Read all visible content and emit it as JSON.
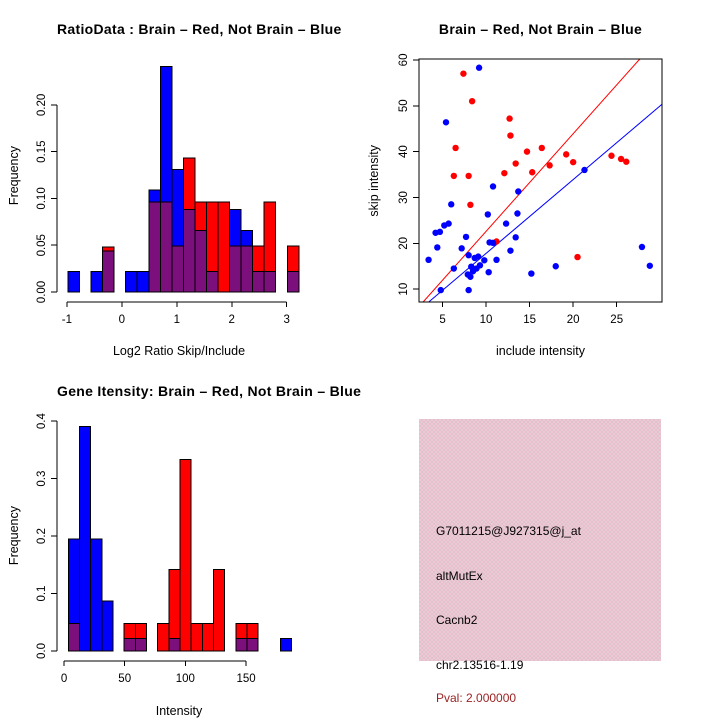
{
  "colors": {
    "red": "#FF0000",
    "blue": "#0000FF",
    "overlap": "#7B0F7B",
    "axis": "#000000",
    "pink_bg": "#F2C6D2",
    "pval_text": "#9B2222",
    "background": "#FFFFFF"
  },
  "chart_data": [
    {
      "id": "ratio-histogram",
      "type": "bar",
      "subtype": "overlaid-histogram",
      "title": "RatioData : Brain – Red, Not Brain – Blue",
      "xlabel": "Log2 Ratio Skip/Include",
      "ylabel": "Frequency",
      "xlim": [
        -1.18,
        3.26
      ],
      "ylim": [
        0,
        0.248
      ],
      "xticks": [
        -1,
        0,
        1,
        2,
        3
      ],
      "xtick_labels": [
        "-1",
        "0",
        "1",
        "2",
        "3"
      ],
      "yticks": [
        0,
        0.05,
        0.1,
        0.15,
        0.2
      ],
      "ytick_labels": [
        "0.00",
        "0.05",
        "0.10",
        "0.15",
        "0.20"
      ],
      "bin_width": 0.21,
      "legend": {
        "brain": "red",
        "not_brain": "blue",
        "overlap": "purple"
      },
      "bars": [
        {
          "x": -0.98,
          "blue": 0.022,
          "red": 0
        },
        {
          "x": -0.56,
          "blue": 0.022,
          "red": 0
        },
        {
          "x": -0.35,
          "blue": 0.044,
          "red": 0.048
        },
        {
          "x": 0.07,
          "blue": 0.022,
          "red": 0
        },
        {
          "x": 0.28,
          "blue": 0.022,
          "red": 0
        },
        {
          "x": 0.49,
          "blue": 0.109,
          "red": 0.096
        },
        {
          "x": 0.7,
          "blue": 0.241,
          "red": 0.096
        },
        {
          "x": 0.91,
          "blue": 0.131,
          "red": 0.049
        },
        {
          "x": 1.12,
          "blue": 0.088,
          "red": 0.143
        },
        {
          "x": 1.33,
          "blue": 0.066,
          "red": 0.096
        },
        {
          "x": 1.54,
          "blue": 0.022,
          "red": 0.096
        },
        {
          "x": 1.75,
          "blue": 0,
          "red": 0.096
        },
        {
          "x": 1.96,
          "blue": 0.088,
          "red": 0.049
        },
        {
          "x": 2.17,
          "blue": 0.066,
          "red": 0.049
        },
        {
          "x": 2.38,
          "blue": 0.022,
          "red": 0.049
        },
        {
          "x": 2.59,
          "blue": 0.022,
          "red": 0.096
        },
        {
          "x": 3.01,
          "blue": 0.022,
          "red": 0.049
        }
      ]
    },
    {
      "id": "intensity-scatter",
      "type": "scatter",
      "title": "Brain – Red, Not Brain – Blue",
      "xlabel": "include intensity",
      "ylabel": "skip intensity",
      "xlim": [
        2.3,
        30.2
      ],
      "ylim": [
        7.2,
        60.2
      ],
      "xticks": [
        5,
        10,
        15,
        20,
        25
      ],
      "xtick_labels": [
        "5",
        "10",
        "15",
        "20",
        "25"
      ],
      "yticks": [
        10,
        20,
        30,
        40,
        50,
        60
      ],
      "ytick_labels": [
        "10",
        "20",
        "30",
        "40",
        "50",
        "60"
      ],
      "red_points": [
        [
          7.4,
          57.0
        ],
        [
          8.4,
          51.0
        ],
        [
          12.7,
          47.2
        ],
        [
          12.8,
          43.5
        ],
        [
          6.5,
          40.8
        ],
        [
          16.4,
          40.8
        ],
        [
          14.7,
          40.0
        ],
        [
          19.2,
          39.4
        ],
        [
          24.4,
          39.1
        ],
        [
          25.5,
          38.4
        ],
        [
          26.1,
          37.8
        ],
        [
          13.4,
          37.4
        ],
        [
          17.3,
          37.0
        ],
        [
          20.0,
          37.7
        ],
        [
          12.1,
          35.3
        ],
        [
          15.3,
          35.5
        ],
        [
          6.3,
          34.7
        ],
        [
          8.0,
          34.7
        ],
        [
          8.2,
          28.4
        ],
        [
          11.2,
          20.4
        ],
        [
          20.5,
          17.0
        ]
      ],
      "blue_points": [
        [
          9.2,
          58.3
        ],
        [
          5.4,
          46.4
        ],
        [
          21.3,
          36.0
        ],
        [
          10.8,
          32.4
        ],
        [
          13.7,
          31.3
        ],
        [
          6.0,
          28.5
        ],
        [
          10.2,
          26.3
        ],
        [
          13.6,
          26.5
        ],
        [
          12.3,
          24.3
        ],
        [
          5.2,
          23.9
        ],
        [
          5.7,
          24.3
        ],
        [
          4.2,
          22.3
        ],
        [
          4.7,
          22.5
        ],
        [
          7.7,
          21.4
        ],
        [
          13.4,
          21.3
        ],
        [
          10.4,
          20.2
        ],
        [
          10.8,
          20.1
        ],
        [
          4.4,
          19.1
        ],
        [
          7.2,
          18.9
        ],
        [
          12.8,
          18.4
        ],
        [
          3.4,
          16.4
        ],
        [
          8.0,
          17.4
        ],
        [
          8.7,
          16.8
        ],
        [
          9.1,
          17.1
        ],
        [
          9.8,
          16.3
        ],
        [
          6.3,
          14.5
        ],
        [
          8.3,
          14.9
        ],
        [
          8.5,
          13.9
        ],
        [
          8.9,
          14.5
        ],
        [
          9.3,
          15.2
        ],
        [
          10.3,
          13.7
        ],
        [
          11.2,
          16.4
        ],
        [
          7.9,
          13.2
        ],
        [
          8.2,
          12.7
        ],
        [
          4.8,
          9.8
        ],
        [
          8.0,
          9.8
        ],
        [
          15.2,
          13.4
        ],
        [
          18.0,
          15.0
        ],
        [
          27.9,
          19.2
        ],
        [
          28.8,
          15.1
        ]
      ],
      "lines": [
        {
          "color": "red",
          "slope": 2.13,
          "intercept": 1.3
        },
        {
          "color": "blue",
          "slope": 1.61,
          "intercept": 1.7
        }
      ]
    },
    {
      "id": "gene-intensity-histogram",
      "type": "bar",
      "subtype": "overlaid-histogram",
      "title": "Gene Itensity: Brain – Red, Not Brain – Blue",
      "xlabel": "Intensity",
      "ylabel": "Frequency",
      "xlim": [
        -5.8,
        195.3
      ],
      "ylim": [
        0,
        0.402
      ],
      "xticks": [
        0,
        50,
        100,
        150
      ],
      "xtick_labels": [
        "0",
        "50",
        "100",
        "150"
      ],
      "yticks": [
        0,
        0.1,
        0.2,
        0.3,
        0.4
      ],
      "ytick_labels": [
        "0.0",
        "0.1",
        "0.2",
        "0.3",
        "0.4"
      ],
      "bin_width": 9.2,
      "legend": {
        "brain": "red",
        "not_brain": "blue",
        "overlap": "purple"
      },
      "bars": [
        {
          "x": 3.6,
          "blue": 0.195,
          "red": 0.048
        },
        {
          "x": 12.8,
          "blue": 0.391,
          "red": 0
        },
        {
          "x": 22.0,
          "blue": 0.195,
          "red": 0
        },
        {
          "x": 31.2,
          "blue": 0.087,
          "red": 0
        },
        {
          "x": 49.6,
          "blue": 0.022,
          "red": 0.048
        },
        {
          "x": 58.8,
          "blue": 0.022,
          "red": 0.048
        },
        {
          "x": 77.2,
          "blue": 0,
          "red": 0.048
        },
        {
          "x": 86.4,
          "blue": 0.022,
          "red": 0.142
        },
        {
          "x": 95.6,
          "blue": 0,
          "red": 0.333
        },
        {
          "x": 104.8,
          "blue": 0,
          "red": 0.048
        },
        {
          "x": 114.0,
          "blue": 0,
          "red": 0.048
        },
        {
          "x": 123.2,
          "blue": 0,
          "red": 0.142
        },
        {
          "x": 141.6,
          "blue": 0.022,
          "red": 0.048
        },
        {
          "x": 150.8,
          "blue": 0.022,
          "red": 0.048
        },
        {
          "x": 178.4,
          "blue": 0.022,
          "red": 0
        }
      ]
    },
    {
      "id": "info-panel",
      "type": "table",
      "background": "#F2C6D2",
      "lines": [
        {
          "text": "G7011215@J927315@j_at",
          "color": "#000000"
        },
        {
          "text": "altMutEx",
          "color": "#000000"
        },
        {
          "text": "Cacnb2",
          "color": "#000000"
        },
        {
          "text": "chr2.13516-1.19",
          "color": "#000000"
        },
        {
          "text": "Pval: 2.000000",
          "color": "#9B2222"
        }
      ]
    }
  ]
}
